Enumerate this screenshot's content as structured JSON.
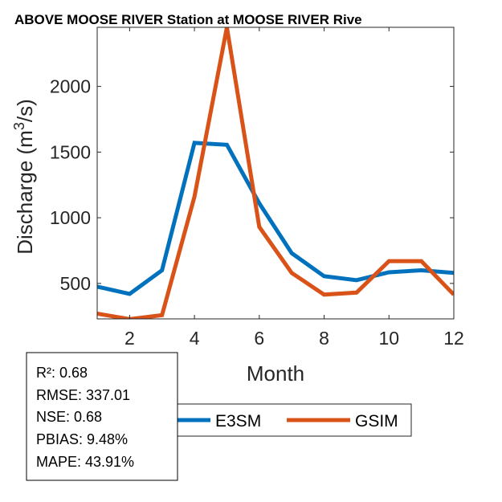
{
  "chart_data": {
    "type": "line",
    "title": "ABOVE MOOSE RIVER  Station at  MOOSE RIVER  Rive",
    "xlabel": "Month",
    "ylabel_main": "Discharge (m",
    "ylabel_sup": "3",
    "ylabel_end": "/s)",
    "xlim": [
      1,
      12
    ],
    "ylim": [
      230,
      2450
    ],
    "xticks": [
      2,
      4,
      6,
      8,
      10,
      12
    ],
    "yticks": [
      500,
      1000,
      1500,
      2000
    ],
    "x": [
      1,
      2,
      3,
      4,
      5,
      6,
      7,
      8,
      9,
      10,
      11,
      12
    ],
    "series": [
      {
        "name": "E3SM",
        "color": "#0072BD",
        "values": [
          475,
          420,
          600,
          1570,
          1555,
          1110,
          730,
          555,
          525,
          585,
          600,
          580
        ]
      },
      {
        "name": "GSIM",
        "color": "#D95319",
        "values": [
          270,
          228,
          258,
          1160,
          2450,
          930,
          580,
          415,
          430,
          670,
          670,
          415
        ]
      }
    ],
    "grid": false,
    "legend_position": "bottom-center",
    "stats": [
      "R²: 0.68",
      "RMSE: 337.01",
      "NSE: 0.68",
      "PBIAS: 9.48%",
      "MAPE: 43.91%"
    ]
  }
}
